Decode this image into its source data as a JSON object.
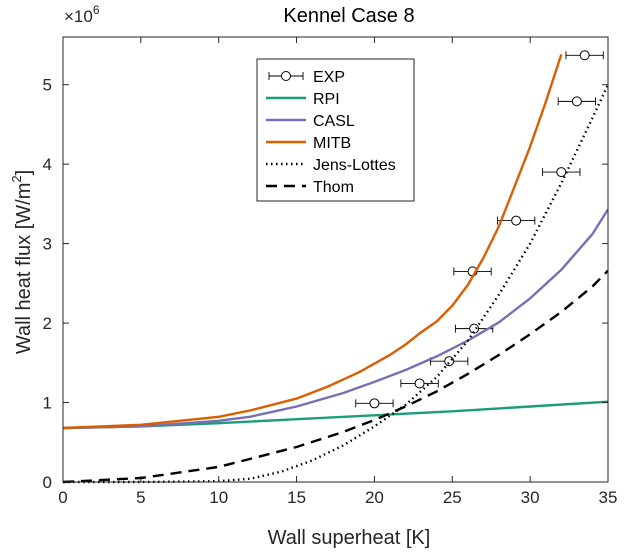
{
  "chart_data": {
    "type": "line",
    "title": "Kennel Case 8",
    "xlabel": "Wall superheat [K]",
    "ylabel": "Wall heat flux [W/m",
    "ylabel_sup": "2",
    "ylabel_end": "]",
    "y_multiplier_base": "×10",
    "y_multiplier_exp": "6",
    "xlim": [
      0,
      35
    ],
    "ylim": [
      0,
      5.6
    ],
    "x_ticks": [
      0,
      5,
      10,
      15,
      20,
      25,
      30,
      35
    ],
    "x_tick_labels": [
      "0",
      "5",
      "10",
      "15",
      "20",
      "25",
      "30",
      "35"
    ],
    "y_ticks": [
      0,
      1,
      2,
      3,
      4,
      5
    ],
    "y_tick_labels": [
      "0",
      "1",
      "2",
      "3",
      "4",
      "5"
    ],
    "grid": false,
    "legend_position": "top-center",
    "series": [
      {
        "name": "EXP",
        "kind": "errorbar",
        "color": "#000000",
        "points": [
          {
            "x": 20.0,
            "y": 0.99,
            "xerr": 1.2
          },
          {
            "x": 22.9,
            "y": 1.24,
            "xerr": 1.2
          },
          {
            "x": 24.8,
            "y": 1.52,
            "xerr": 1.2
          },
          {
            "x": 26.4,
            "y": 1.93,
            "xerr": 1.2
          },
          {
            "x": 26.3,
            "y": 2.65,
            "xerr": 1.2
          },
          {
            "x": 29.1,
            "y": 3.29,
            "xerr": 1.2
          },
          {
            "x": 32.0,
            "y": 3.9,
            "xerr": 1.2
          },
          {
            "x": 33.0,
            "y": 4.79,
            "xerr": 1.2
          },
          {
            "x": 33.5,
            "y": 5.37,
            "xerr": 1.2
          }
        ]
      },
      {
        "name": "RPI",
        "kind": "line",
        "color": "#1b9e77",
        "dash": "solid",
        "x": [
          0,
          5,
          10,
          15,
          20,
          25,
          30,
          35
        ],
        "y": [
          0.68,
          0.7,
          0.74,
          0.79,
          0.84,
          0.89,
          0.95,
          1.01
        ]
      },
      {
        "name": "CASL",
        "kind": "line",
        "color": "#7570b3",
        "dash": "solid",
        "x": [
          0,
          5,
          10,
          12,
          15,
          18,
          20,
          22,
          24,
          26,
          28,
          30,
          32,
          34,
          35
        ],
        "y": [
          0.68,
          0.7,
          0.77,
          0.82,
          0.95,
          1.12,
          1.26,
          1.41,
          1.58,
          1.78,
          2.01,
          2.31,
          2.67,
          3.12,
          3.43
        ]
      },
      {
        "name": "MITB",
        "kind": "line",
        "color": "#d95f02",
        "dash": "solid",
        "x": [
          0,
          5,
          10,
          12,
          15,
          17,
          19,
          21,
          22,
          22.9,
          24,
          25,
          26,
          27,
          28,
          29,
          30,
          31,
          32
        ],
        "y": [
          0.68,
          0.72,
          0.82,
          0.9,
          1.05,
          1.2,
          1.38,
          1.6,
          1.73,
          1.87,
          2.02,
          2.22,
          2.48,
          2.82,
          3.22,
          3.72,
          4.22,
          4.78,
          5.38
        ]
      },
      {
        "name": "Jens-Lottes",
        "kind": "line",
        "color": "#000000",
        "dash": "dotted",
        "x": [
          0,
          5,
          10,
          12,
          14,
          16,
          18,
          20,
          22,
          24,
          26,
          28,
          30,
          32,
          34,
          35
        ],
        "y": [
          0.0,
          0.0,
          0.01,
          0.04,
          0.13,
          0.27,
          0.46,
          0.7,
          0.97,
          1.32,
          1.78,
          2.36,
          3.0,
          3.76,
          4.58,
          5.0
        ]
      },
      {
        "name": "Thom",
        "kind": "line",
        "color": "#000000",
        "dash": "dashed",
        "x": [
          0,
          5,
          10,
          15,
          18,
          20,
          22,
          24,
          26,
          28,
          30,
          32,
          34,
          35
        ],
        "y": [
          0.0,
          0.05,
          0.19,
          0.44,
          0.63,
          0.78,
          0.95,
          1.14,
          1.36,
          1.6,
          1.86,
          2.14,
          2.46,
          2.66
        ]
      }
    ]
  }
}
